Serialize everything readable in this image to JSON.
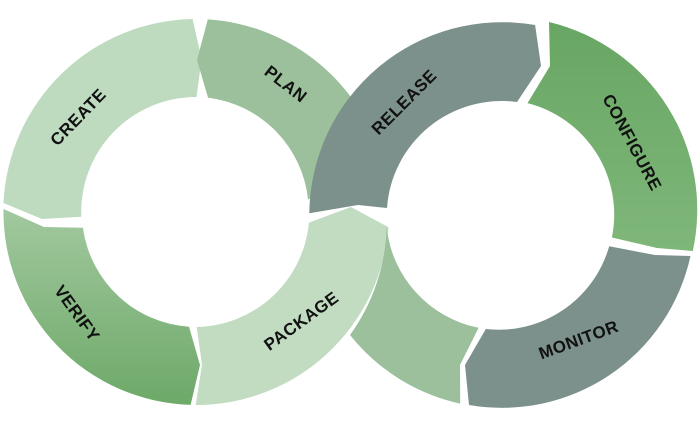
{
  "diagram": {
    "left_loop": {
      "create": {
        "label": "CREATE",
        "color": "#bedbbf"
      },
      "plan": {
        "label": "PLAN",
        "color": "#9bc09b"
      },
      "package": {
        "label": "PACKAGE",
        "color": "#c1dcc0"
      },
      "verify": {
        "label": "VERIFY",
        "color": "#7fb37a"
      }
    },
    "right_loop": {
      "release": {
        "label": "RELEASE",
        "color": "#7c918b"
      },
      "configure": {
        "label": "CONFIGURE",
        "color": "#72ad6c"
      },
      "monitor": {
        "label": "MONITOR",
        "color": "#7c918b"
      },
      "lower_connector": {
        "color": "#9bc09b"
      }
    }
  }
}
